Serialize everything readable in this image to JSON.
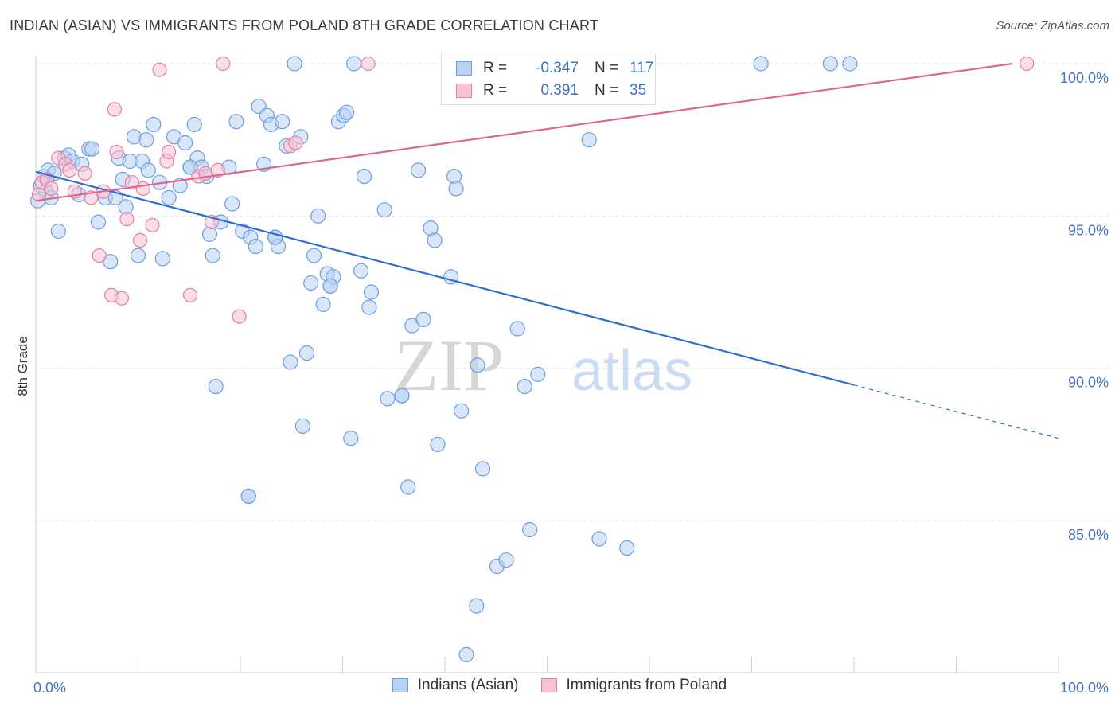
{
  "header": {
    "title": "INDIAN (ASIAN) VS IMMIGRANTS FROM POLAND 8TH GRADE CORRELATION CHART",
    "source": "Source: ZipAtlas.com"
  },
  "legend": {
    "rows": [
      {
        "r_label": "R =",
        "r_value": "-0.347",
        "n_label": "N =",
        "n_value": "117"
      },
      {
        "r_label": "R =",
        "r_value": "0.391",
        "n_label": "N =",
        "n_value": "35"
      }
    ]
  },
  "watermark": {
    "zip": "ZIP",
    "atlas": "atlas"
  },
  "chart_data": {
    "type": "scatter",
    "title": "INDIAN (ASIAN) VS IMMIGRANTS FROM POLAND 8TH GRADE CORRELATION CHART",
    "xlabel": "",
    "ylabel": "8th Grade",
    "xlim": [
      0,
      100
    ],
    "ylim": [
      80,
      100.5
    ],
    "x_tick_labels": [
      "0.0%",
      "100.0%"
    ],
    "y_tick_labels": [
      "85.0%",
      "90.0%",
      "95.0%",
      "100.0%"
    ],
    "y_ticks": [
      85,
      90,
      95,
      100
    ],
    "grid": "horizontal dashed",
    "legend_position": "top-center",
    "colors": {
      "blue": "#6d9fe0",
      "blue_fill": "#b9d1f3",
      "pink": "#e87ea1",
      "pink_fill": "#f6c3d3",
      "blue_line": "#2f6fcf",
      "pink_line": "#e0668f"
    },
    "series": [
      {
        "name": "Indians (Asian)",
        "color": "#6d9fe0",
        "points": [
          [
            0.2,
            95.5
          ],
          [
            0.5,
            96.0
          ],
          [
            0.8,
            96.3
          ],
          [
            1.0,
            95.8
          ],
          [
            1.2,
            96.5
          ],
          [
            1.5,
            95.6
          ],
          [
            1.8,
            96.4
          ],
          [
            2.2,
            94.5
          ],
          [
            2.8,
            96.9
          ],
          [
            3.2,
            97.0
          ],
          [
            3.6,
            96.8
          ],
          [
            4.2,
            95.7
          ],
          [
            4.5,
            96.7
          ],
          [
            5.2,
            97.2
          ],
          [
            5.5,
            97.2
          ],
          [
            6.1,
            94.8
          ],
          [
            6.8,
            95.6
          ],
          [
            7.3,
            93.5
          ],
          [
            7.8,
            95.6
          ],
          [
            8.1,
            96.9
          ],
          [
            8.5,
            96.2
          ],
          [
            8.8,
            95.3
          ],
          [
            9.2,
            96.8
          ],
          [
            9.6,
            97.6
          ],
          [
            10.0,
            93.7
          ],
          [
            10.4,
            96.8
          ],
          [
            10.8,
            97.5
          ],
          [
            11.0,
            96.5
          ],
          [
            11.5,
            98.0
          ],
          [
            12.1,
            96.1
          ],
          [
            12.4,
            93.6
          ],
          [
            13.0,
            95.6
          ],
          [
            13.5,
            97.6
          ],
          [
            14.1,
            96.0
          ],
          [
            14.6,
            97.4
          ],
          [
            15.1,
            96.6
          ],
          [
            15.5,
            98.0
          ],
          [
            15.8,
            96.9
          ],
          [
            16.2,
            96.6
          ],
          [
            16.7,
            96.3
          ],
          [
            17.0,
            94.4
          ],
          [
            17.3,
            93.7
          ],
          [
            17.6,
            89.4
          ],
          [
            18.1,
            94.8
          ],
          [
            18.9,
            96.6
          ],
          [
            19.2,
            95.4
          ],
          [
            19.6,
            98.1
          ],
          [
            20.2,
            94.5
          ],
          [
            20.8,
            85.8
          ],
          [
            21.0,
            94.3
          ],
          [
            21.5,
            94.0
          ],
          [
            21.8,
            98.6
          ],
          [
            22.3,
            96.7
          ],
          [
            22.6,
            98.3
          ],
          [
            23.0,
            98.0
          ],
          [
            23.4,
            94.3
          ],
          [
            23.7,
            94.0
          ],
          [
            24.1,
            98.1
          ],
          [
            24.5,
            97.3
          ],
          [
            24.9,
            90.2
          ],
          [
            25.3,
            100.0
          ],
          [
            25.9,
            97.6
          ],
          [
            26.1,
            88.1
          ],
          [
            26.5,
            90.5
          ],
          [
            26.9,
            92.8
          ],
          [
            27.2,
            93.7
          ],
          [
            27.6,
            95.0
          ],
          [
            28.1,
            92.1
          ],
          [
            28.5,
            93.1
          ],
          [
            28.8,
            92.7
          ],
          [
            29.1,
            93.0
          ],
          [
            29.6,
            98.1
          ],
          [
            30.1,
            98.3
          ],
          [
            30.4,
            98.4
          ],
          [
            30.8,
            87.7
          ],
          [
            31.1,
            100.0
          ],
          [
            31.8,
            93.2
          ],
          [
            32.1,
            96.3
          ],
          [
            32.6,
            92.0
          ],
          [
            32.8,
            92.5
          ],
          [
            34.1,
            95.2
          ],
          [
            34.4,
            89.0
          ],
          [
            35.8,
            89.1
          ],
          [
            36.4,
            86.1
          ],
          [
            36.8,
            91.4
          ],
          [
            37.4,
            96.5
          ],
          [
            37.9,
            91.6
          ],
          [
            38.6,
            94.6
          ],
          [
            39.0,
            94.2
          ],
          [
            39.3,
            87.5
          ],
          [
            40.6,
            93.0
          ],
          [
            40.9,
            96.3
          ],
          [
            41.1,
            95.9
          ],
          [
            41.6,
            88.6
          ],
          [
            42.1,
            80.6
          ],
          [
            43.1,
            82.2
          ],
          [
            43.2,
            90.1
          ],
          [
            43.7,
            86.7
          ],
          [
            45.1,
            83.5
          ],
          [
            46.0,
            83.7
          ],
          [
            46.4,
            100.0
          ],
          [
            47.1,
            91.3
          ],
          [
            47.8,
            89.4
          ],
          [
            48.3,
            84.7
          ],
          [
            49.1,
            89.8
          ],
          [
            50.1,
            100.0
          ],
          [
            54.1,
            97.5
          ],
          [
            55.1,
            84.4
          ],
          [
            57.8,
            84.1
          ],
          [
            70.9,
            100.0
          ],
          [
            77.7,
            100.0
          ],
          [
            79.6,
            100.0
          ],
          [
            20.8,
            85.8
          ],
          [
            23.4,
            94.3
          ],
          [
            15.1,
            96.6
          ],
          [
            28.8,
            92.7
          ],
          [
            35.8,
            89.1
          ]
        ]
      },
      {
        "name": "Immigrants from Poland",
        "color": "#e87ea1",
        "points": [
          [
            0.3,
            95.7
          ],
          [
            0.6,
            96.1
          ],
          [
            1.1,
            96.2
          ],
          [
            1.5,
            95.9
          ],
          [
            2.2,
            96.9
          ],
          [
            2.9,
            96.7
          ],
          [
            3.3,
            96.5
          ],
          [
            3.8,
            95.8
          ],
          [
            4.8,
            96.4
          ],
          [
            5.4,
            95.6
          ],
          [
            6.2,
            93.7
          ],
          [
            6.6,
            95.8
          ],
          [
            7.4,
            92.4
          ],
          [
            7.7,
            98.5
          ],
          [
            7.9,
            97.1
          ],
          [
            8.4,
            92.3
          ],
          [
            8.9,
            94.9
          ],
          [
            9.4,
            96.1
          ],
          [
            10.2,
            94.2
          ],
          [
            10.5,
            95.9
          ],
          [
            11.4,
            94.7
          ],
          [
            12.1,
            99.8
          ],
          [
            12.8,
            96.8
          ],
          [
            13.0,
            97.1
          ],
          [
            15.1,
            92.4
          ],
          [
            15.9,
            96.3
          ],
          [
            16.6,
            96.4
          ],
          [
            17.2,
            94.8
          ],
          [
            17.8,
            96.5
          ],
          [
            18.3,
            100.0
          ],
          [
            19.9,
            91.7
          ],
          [
            24.9,
            97.3
          ],
          [
            25.4,
            97.4
          ],
          [
            32.5,
            100.0
          ],
          [
            96.9,
            100.0
          ]
        ]
      }
    ],
    "trendlines": [
      {
        "series": "Indians (Asian)",
        "x": [
          0,
          80
        ],
        "y": [
          96.45,
          89.45
        ],
        "dashed_extension_to": [
          100,
          87.7
        ]
      },
      {
        "series": "Immigrants from Poland",
        "x": [
          0,
          95.5
        ],
        "y": [
          95.5,
          100.0
        ]
      }
    ]
  },
  "bottom_legend": {
    "items": [
      {
        "label": "Indians (Asian)"
      },
      {
        "label": "Immigrants from Poland"
      }
    ]
  }
}
